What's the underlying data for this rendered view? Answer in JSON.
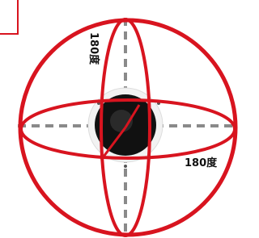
{
  "labels": {
    "vertical": "180度",
    "horizontal": "180度"
  }
}
